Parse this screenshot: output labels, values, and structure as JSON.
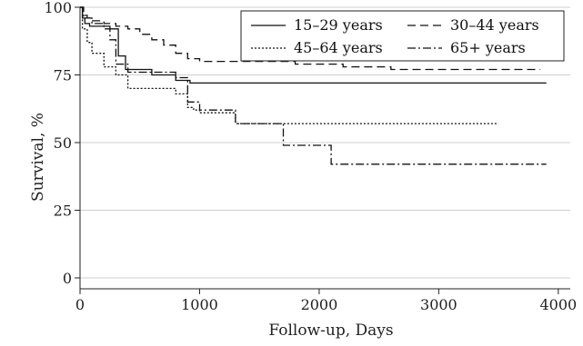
{
  "chart_data": {
    "type": "line",
    "step": true,
    "xlabel": "Follow-up, Days",
    "ylabel": "Survival, %",
    "xlim": [
      0,
      4100
    ],
    "ylim": [
      0,
      100
    ],
    "xticks": [
      "0",
      "1000",
      "2000",
      "3000",
      "4000"
    ],
    "yticks": [
      "0",
      "25",
      "50",
      "75",
      "100"
    ],
    "grid": "horizontal",
    "legend_position": "top-right",
    "series": [
      {
        "name": "15–29 years",
        "dash": "solid",
        "x": [
          0,
          20,
          40,
          80,
          150,
          250,
          320,
          380,
          600,
          800,
          920,
          3900
        ],
        "y": [
          100,
          96,
          94,
          93,
          93,
          92,
          82,
          77,
          75,
          73,
          72,
          72
        ]
      },
      {
        "name": "30–44 years",
        "dash": "dashed",
        "x": [
          0,
          30,
          60,
          100,
          200,
          300,
          400,
          500,
          600,
          700,
          800,
          900,
          1000,
          1200,
          1500,
          1800,
          2200,
          2600,
          3850
        ],
        "y": [
          100,
          97,
          96,
          95,
          94,
          93,
          92,
          90,
          88,
          86,
          83,
          81,
          80,
          80,
          80,
          79,
          78,
          77,
          77
        ]
      },
      {
        "name": "45–64 years",
        "dash": "dotted",
        "x": [
          0,
          20,
          60,
          100,
          200,
          300,
          400,
          700,
          800,
          900,
          950,
          1000,
          1300,
          1450,
          3500
        ],
        "y": [
          100,
          92,
          87,
          83,
          78,
          75,
          70,
          70,
          68,
          63,
          62,
          61,
          57,
          57,
          57
        ]
      },
      {
        "name": "65+ years",
        "dash": "dashdot",
        "x": [
          0,
          30,
          100,
          200,
          250,
          300,
          400,
          600,
          800,
          900,
          1000,
          1300,
          1400,
          1700,
          1800,
          2000,
          2100,
          3900
        ],
        "y": [
          100,
          96,
          94,
          92,
          88,
          79,
          76,
          76,
          74,
          65,
          62,
          57,
          57,
          49,
          49,
          49,
          42,
          42
        ]
      }
    ]
  }
}
